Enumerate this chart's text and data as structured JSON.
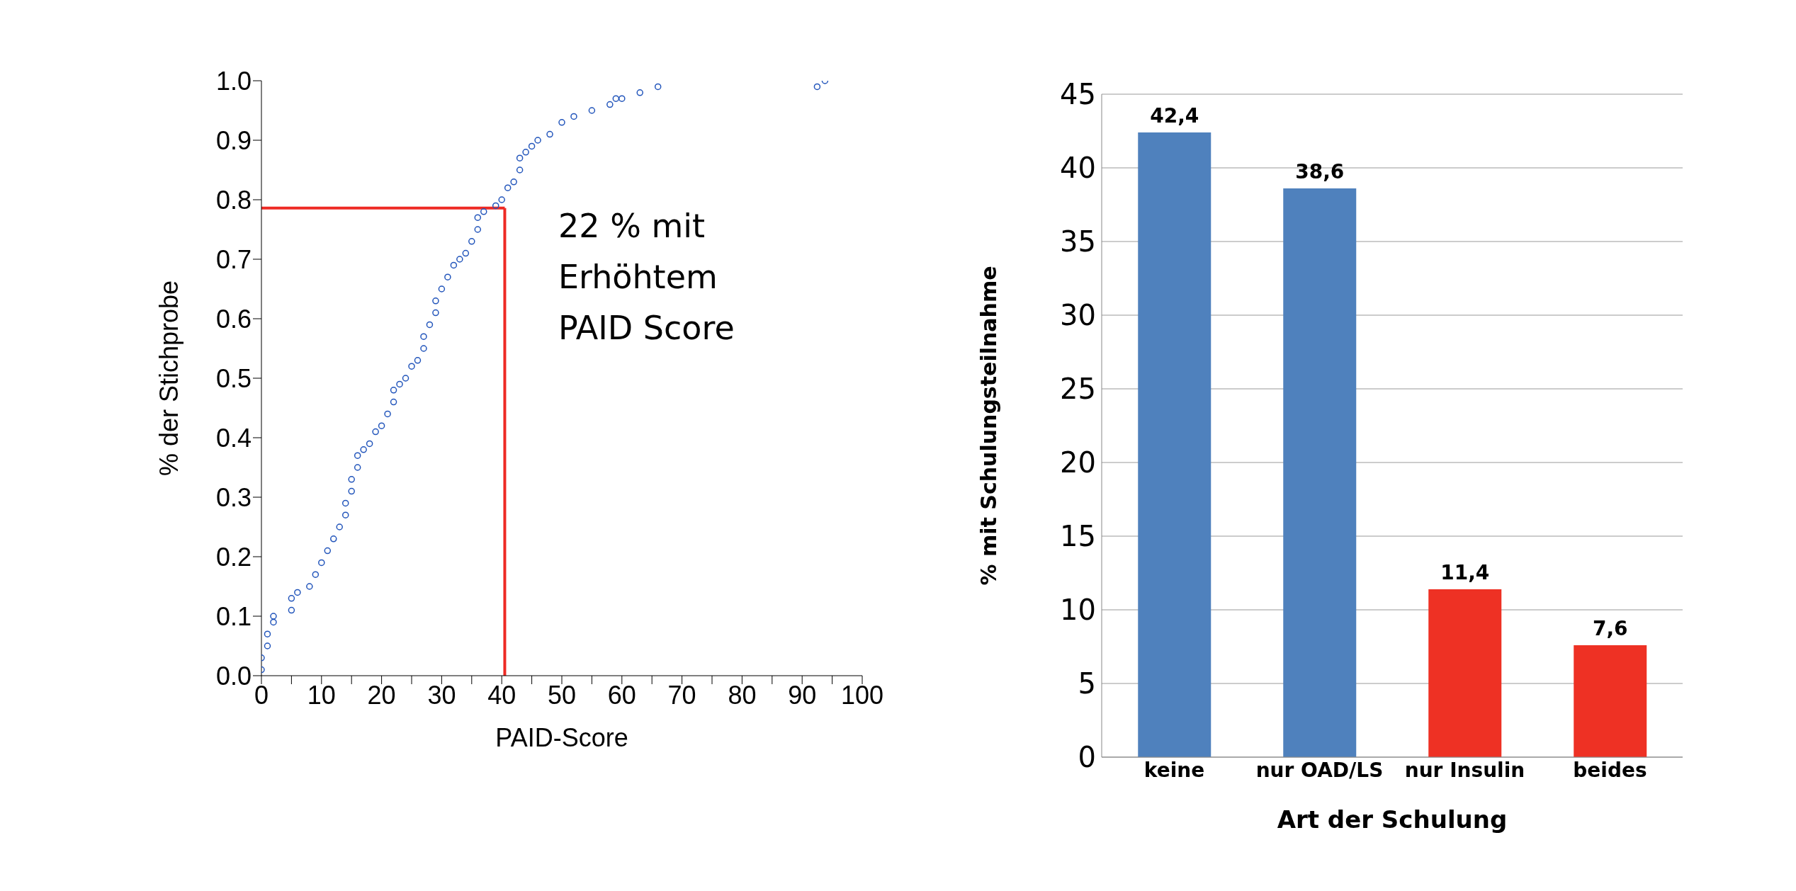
{
  "chart_data": [
    {
      "type": "scatter",
      "xlabel": "PAID-Score",
      "ylabel": "% der Stichprobe",
      "xlim": [
        0,
        100
      ],
      "xticks": [
        0,
        {
          "value": 5,
          "label": null
        },
        10,
        {
          "value": 15,
          "label": null
        },
        20,
        {
          "value": 25,
          "label": null
        },
        30,
        {
          "value": 35,
          "label": null
        },
        40,
        {
          "value": 45,
          "label": null
        },
        50,
        {
          "value": 55,
          "label": null
        },
        60,
        {
          "value": 65,
          "label": null
        },
        70,
        {
          "value": 75,
          "label": null
        },
        80,
        {
          "value": 85,
          "label": null
        },
        90,
        {
          "value": 95,
          "label": null
        },
        100
      ],
      "ylim": [
        0,
        1
      ],
      "yticks": [
        {
          "value": 0,
          "label": "0.0"
        },
        0.1,
        0.2,
        0.3,
        0.4,
        0.5,
        0.6,
        0.7,
        0.8,
        0.9,
        {
          "value": 1,
          "label": "1.0"
        }
      ],
      "marker": "circle",
      "grid": false,
      "legend": false,
      "x": [
        0,
        0,
        1,
        1,
        2,
        2,
        5,
        5,
        6,
        8,
        9,
        10,
        11,
        12,
        13,
        14,
        14,
        15,
        15,
        16,
        16,
        17,
        18,
        19,
        20,
        21,
        22,
        22,
        23,
        24,
        25,
        26,
        27,
        27,
        28,
        29,
        29,
        30,
        31,
        32,
        33,
        34,
        35,
        36,
        36,
        37,
        39,
        40,
        41,
        42,
        43,
        43,
        44,
        45,
        46,
        48,
        50,
        52,
        55,
        58,
        59,
        60,
        63,
        66,
        92.5,
        93.8
      ],
      "series": [
        {
          "color": "#2255bb",
          "values": [
            0.01,
            0.03,
            0.05,
            0.07,
            0.09,
            0.1,
            0.11,
            0.13,
            0.14,
            0.15,
            0.17,
            0.19,
            0.21,
            0.23,
            0.25,
            0.27,
            0.29,
            0.31,
            0.33,
            0.35,
            0.37,
            0.38,
            0.39,
            0.41,
            0.42,
            0.44,
            0.46,
            0.48,
            0.49,
            0.5,
            0.52,
            0.53,
            0.55,
            0.57,
            0.59,
            0.61,
            0.63,
            0.65,
            0.67,
            0.69,
            0.7,
            0.71,
            0.73,
            0.75,
            0.77,
            0.78,
            0.79,
            0.8,
            0.82,
            0.83,
            0.85,
            0.87,
            0.88,
            0.89,
            0.9,
            0.91,
            0.93,
            0.94,
            0.95,
            0.96,
            0.97,
            0.97,
            0.98,
            0.99,
            0.99,
            1.0
          ]
        }
      ],
      "ref_lines": [
        {
          "axis": "y",
          "value": 0.786,
          "color": "#ee2a24"
        },
        {
          "axis": "x",
          "value": 40.5,
          "color": "#ee2a24"
        }
      ],
      "annotations": [
        "22 % mit\nErhöhtem\nPAID Score"
      ]
    },
    {
      "type": "bar",
      "xlabel": "Art der Schulung",
      "ylabel": "% mit Schulungsteilnahme",
      "categories": [
        "keine",
        "nur OAD/LS",
        "nur Insulin",
        "beides"
      ],
      "values": [
        42.4,
        38.6,
        11.4,
        7.6
      ],
      "value_labels": [
        "42,4",
        "38,6",
        "11,4",
        "7,6"
      ],
      "colors": [
        "#4f81bd",
        "#4f81bd",
        "#ee3124",
        "#ee3124"
      ],
      "ylim": [
        0,
        45
      ],
      "yticks": [
        0,
        5,
        10,
        15,
        20,
        25,
        30,
        35,
        40,
        45
      ],
      "grid": "y",
      "legend": false
    }
  ]
}
